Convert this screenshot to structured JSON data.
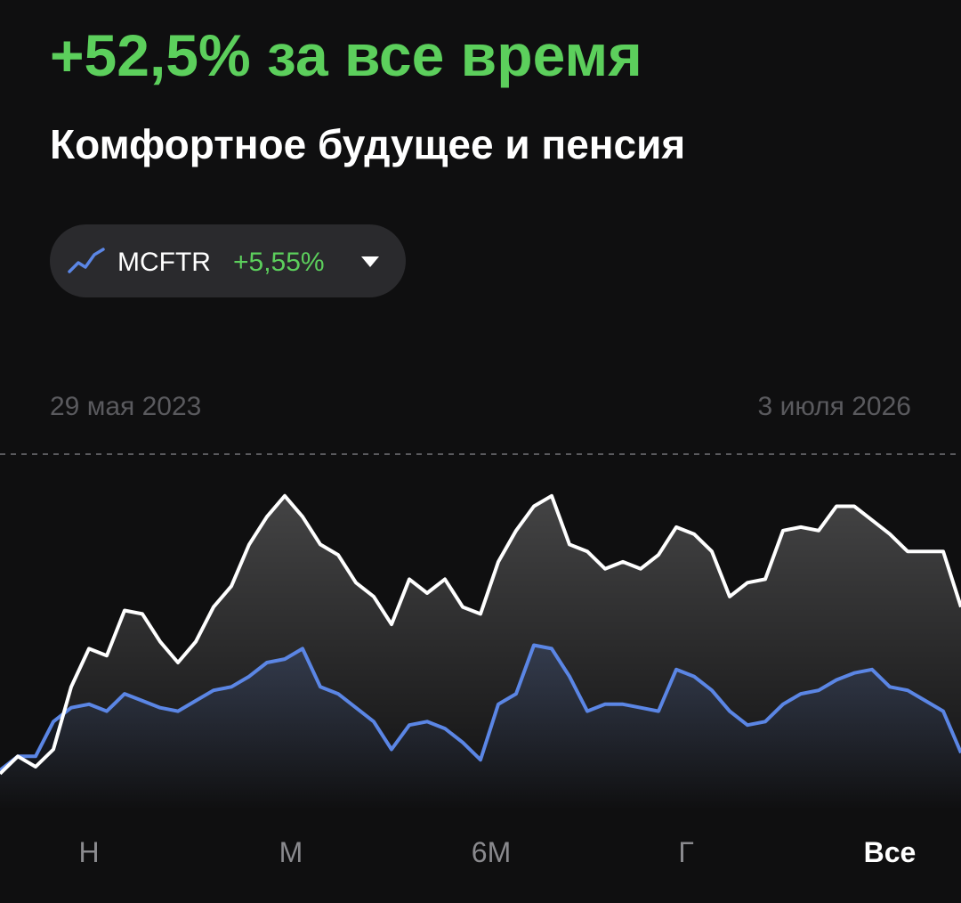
{
  "header": {
    "title": "+52,5% за все время",
    "subtitle": "Комфортное будущее и пенсия"
  },
  "benchmark": {
    "name": "MCFTR",
    "change": "+5,55%"
  },
  "chart_data": {
    "type": "line",
    "date_range": [
      "29 мая 2023",
      "3 июля 2026"
    ],
    "ylim": [
      0,
      100
    ],
    "series": [
      {
        "color": "#ffffff",
        "values": [
          8,
          13,
          10,
          15,
          33,
          44,
          42,
          55,
          54,
          46,
          40,
          46,
          56,
          62,
          74,
          82,
          88,
          82,
          74,
          71,
          63,
          59,
          51,
          64,
          60,
          64,
          56,
          54,
          69,
          78,
          85,
          88,
          74,
          72,
          67,
          69,
          67,
          71,
          79,
          77,
          72,
          59,
          63,
          64,
          78,
          79,
          78,
          85,
          85,
          81,
          77,
          72,
          72,
          72,
          56
        ]
      },
      {
        "name": "MCFTR",
        "color": "#5b86e5",
        "values": [
          9,
          13,
          13,
          23,
          27,
          28,
          26,
          31,
          29,
          27,
          26,
          29,
          32,
          33,
          36,
          40,
          41,
          44,
          33,
          31,
          27,
          23,
          15,
          22,
          23,
          21,
          17,
          12,
          28,
          31,
          45,
          44,
          36,
          26,
          28,
          28,
          27,
          26,
          38,
          36,
          32,
          26,
          22,
          23,
          28,
          31,
          32,
          35,
          37,
          38,
          33,
          32,
          29,
          26,
          14
        ]
      }
    ]
  },
  "tabs": {
    "items": [
      "Н",
      "М",
      "6М",
      "Г",
      "Все"
    ],
    "selected": 4
  }
}
